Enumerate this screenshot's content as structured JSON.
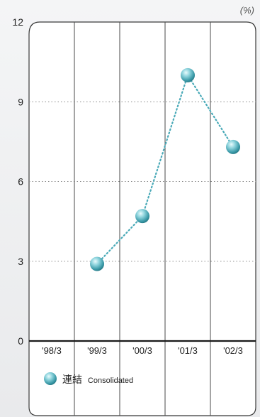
{
  "chart_data": {
    "type": "line",
    "unit_label": "(%)",
    "categories": [
      "'98/3",
      "'99/3",
      "'00/3",
      "'01/3",
      "'02/3"
    ],
    "y_ticks": [
      0,
      3,
      6,
      9,
      12
    ],
    "ylim": [
      0,
      12
    ],
    "grid": true,
    "series": [
      {
        "name": "連結 Consolidated",
        "name_ja": "連結",
        "name_en": "Consolidated",
        "values": [
          null,
          2.9,
          4.7,
          10.0,
          7.3
        ]
      }
    ],
    "legend_placement": "bottom-left",
    "colors": {
      "series": "#4aaab8",
      "gridline": "#6b6b6b",
      "frame": "#3a3a3a"
    }
  }
}
